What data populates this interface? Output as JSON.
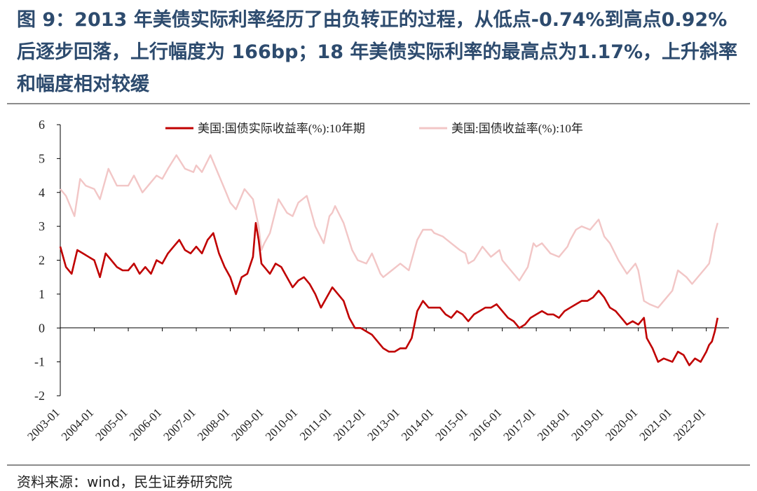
{
  "title": "图 9：2013 年美债实际利率经历了由负转正的过程，从低点-0.74%到高点0.92%后逐步回落，上行幅度为 166bp；18 年美债实际利率的最高点为1.17%，上升斜率和幅度相对较缓",
  "source": "资料来源：wind，民生证券研究院",
  "chart_data": {
    "type": "line",
    "ylim": [
      -2,
      6
    ],
    "yticks": [
      "6",
      "5",
      "4",
      "3",
      "2",
      "1",
      "0",
      "-1",
      "-2"
    ],
    "x_tick_labels": [
      "2003-01",
      "2004-01",
      "2005-01",
      "2006-01",
      "2007-01",
      "2008-01",
      "2009-01",
      "2010-01",
      "2011-01",
      "2012-01",
      "2013-01",
      "2014-01",
      "2015-01",
      "2016-01",
      "2017-01",
      "2018-01",
      "2019-01",
      "2020-01",
      "2021-01",
      "2022-01"
    ],
    "legend_position": "top",
    "series": [
      {
        "name": "美国:国债实际收益率(%):10年期",
        "color": "#c00000",
        "points": [
          [
            "2003-01",
            2.4
          ],
          [
            "2003-03",
            1.8
          ],
          [
            "2003-05",
            1.6
          ],
          [
            "2003-07",
            2.3
          ],
          [
            "2003-09",
            2.2
          ],
          [
            "2003-11",
            2.1
          ],
          [
            "2004-01",
            2.0
          ],
          [
            "2004-03",
            1.5
          ],
          [
            "2004-05",
            2.2
          ],
          [
            "2004-07",
            2.0
          ],
          [
            "2004-09",
            1.8
          ],
          [
            "2004-11",
            1.7
          ],
          [
            "2005-01",
            1.7
          ],
          [
            "2005-03",
            1.9
          ],
          [
            "2005-05",
            1.6
          ],
          [
            "2005-07",
            1.8
          ],
          [
            "2005-09",
            1.6
          ],
          [
            "2005-11",
            2.0
          ],
          [
            "2006-01",
            1.9
          ],
          [
            "2006-03",
            2.2
          ],
          [
            "2006-05",
            2.4
          ],
          [
            "2006-07",
            2.6
          ],
          [
            "2006-09",
            2.3
          ],
          [
            "2006-11",
            2.2
          ],
          [
            "2007-01",
            2.4
          ],
          [
            "2007-03",
            2.2
          ],
          [
            "2007-05",
            2.6
          ],
          [
            "2007-07",
            2.8
          ],
          [
            "2007-09",
            2.2
          ],
          [
            "2007-11",
            1.8
          ],
          [
            "2008-01",
            1.5
          ],
          [
            "2008-03",
            1.0
          ],
          [
            "2008-05",
            1.5
          ],
          [
            "2008-07",
            1.6
          ],
          [
            "2008-09",
            2.1
          ],
          [
            "2008-10",
            3.1
          ],
          [
            "2008-11",
            2.6
          ],
          [
            "2008-12",
            1.9
          ],
          [
            "2009-01",
            1.8
          ],
          [
            "2009-03",
            1.6
          ],
          [
            "2009-05",
            1.9
          ],
          [
            "2009-07",
            1.8
          ],
          [
            "2009-09",
            1.5
          ],
          [
            "2009-11",
            1.2
          ],
          [
            "2010-01",
            1.4
          ],
          [
            "2010-03",
            1.5
          ],
          [
            "2010-05",
            1.3
          ],
          [
            "2010-07",
            1.0
          ],
          [
            "2010-09",
            0.6
          ],
          [
            "2010-11",
            0.9
          ],
          [
            "2011-01",
            1.2
          ],
          [
            "2011-03",
            1.0
          ],
          [
            "2011-05",
            0.8
          ],
          [
            "2011-07",
            0.3
          ],
          [
            "2011-09",
            0.0
          ],
          [
            "2011-11",
            0.0
          ],
          [
            "2012-01",
            -0.1
          ],
          [
            "2012-03",
            -0.2
          ],
          [
            "2012-05",
            -0.4
          ],
          [
            "2012-07",
            -0.6
          ],
          [
            "2012-09",
            -0.7
          ],
          [
            "2012-11",
            -0.7
          ],
          [
            "2013-01",
            -0.6
          ],
          [
            "2013-03",
            -0.6
          ],
          [
            "2013-05",
            -0.3
          ],
          [
            "2013-07",
            0.5
          ],
          [
            "2013-09",
            0.8
          ],
          [
            "2013-11",
            0.6
          ],
          [
            "2014-01",
            0.6
          ],
          [
            "2014-03",
            0.6
          ],
          [
            "2014-05",
            0.4
          ],
          [
            "2014-07",
            0.3
          ],
          [
            "2014-09",
            0.5
          ],
          [
            "2014-11",
            0.4
          ],
          [
            "2015-01",
            0.2
          ],
          [
            "2015-03",
            0.4
          ],
          [
            "2015-05",
            0.5
          ],
          [
            "2015-07",
            0.6
          ],
          [
            "2015-09",
            0.6
          ],
          [
            "2015-11",
            0.7
          ],
          [
            "2016-01",
            0.5
          ],
          [
            "2016-03",
            0.3
          ],
          [
            "2016-05",
            0.2
          ],
          [
            "2016-07",
            0.0
          ],
          [
            "2016-09",
            0.1
          ],
          [
            "2016-11",
            0.3
          ],
          [
            "2017-01",
            0.4
          ],
          [
            "2017-03",
            0.5
          ],
          [
            "2017-05",
            0.4
          ],
          [
            "2017-07",
            0.4
          ],
          [
            "2017-09",
            0.3
          ],
          [
            "2017-11",
            0.5
          ],
          [
            "2018-01",
            0.6
          ],
          [
            "2018-03",
            0.7
          ],
          [
            "2018-05",
            0.8
          ],
          [
            "2018-07",
            0.8
          ],
          [
            "2018-09",
            0.9
          ],
          [
            "2018-11",
            1.1
          ],
          [
            "2019-01",
            0.9
          ],
          [
            "2019-03",
            0.6
          ],
          [
            "2019-05",
            0.5
          ],
          [
            "2019-07",
            0.3
          ],
          [
            "2019-09",
            0.1
          ],
          [
            "2019-11",
            0.2
          ],
          [
            "2020-01",
            0.1
          ],
          [
            "2020-03",
            0.3
          ],
          [
            "2020-04",
            -0.3
          ],
          [
            "2020-06",
            -0.6
          ],
          [
            "2020-08",
            -1.0
          ],
          [
            "2020-10",
            -0.9
          ],
          [
            "2021-01",
            -1.0
          ],
          [
            "2021-03",
            -0.7
          ],
          [
            "2021-05",
            -0.8
          ],
          [
            "2021-07",
            -1.1
          ],
          [
            "2021-09",
            -0.9
          ],
          [
            "2021-11",
            -1.0
          ],
          [
            "2022-01",
            -0.7
          ],
          [
            "2022-02",
            -0.5
          ],
          [
            "2022-03",
            -0.4
          ],
          [
            "2022-04",
            -0.1
          ],
          [
            "2022-05",
            0.3
          ]
        ]
      },
      {
        "name": "美国:国债收益率(%):10年",
        "color": "#f2c6c6",
        "points": [
          [
            "2003-01",
            4.1
          ],
          [
            "2003-03",
            3.9
          ],
          [
            "2003-06",
            3.3
          ],
          [
            "2003-08",
            4.4
          ],
          [
            "2003-10",
            4.2
          ],
          [
            "2004-01",
            4.1
          ],
          [
            "2004-03",
            3.8
          ],
          [
            "2004-06",
            4.7
          ],
          [
            "2004-09",
            4.2
          ],
          [
            "2004-12",
            4.2
          ],
          [
            "2005-01",
            4.2
          ],
          [
            "2005-03",
            4.5
          ],
          [
            "2005-06",
            4.0
          ],
          [
            "2005-09",
            4.3
          ],
          [
            "2005-11",
            4.5
          ],
          [
            "2006-01",
            4.4
          ],
          [
            "2006-03",
            4.7
          ],
          [
            "2006-06",
            5.1
          ],
          [
            "2006-09",
            4.7
          ],
          [
            "2006-12",
            4.6
          ],
          [
            "2007-01",
            4.8
          ],
          [
            "2007-03",
            4.6
          ],
          [
            "2007-06",
            5.1
          ],
          [
            "2007-09",
            4.5
          ],
          [
            "2007-11",
            4.1
          ],
          [
            "2008-01",
            3.7
          ],
          [
            "2008-03",
            3.5
          ],
          [
            "2008-06",
            4.1
          ],
          [
            "2008-09",
            3.8
          ],
          [
            "2008-11",
            3.0
          ],
          [
            "2008-12",
            2.3
          ],
          [
            "2009-01",
            2.5
          ],
          [
            "2009-03",
            2.8
          ],
          [
            "2009-06",
            3.8
          ],
          [
            "2009-09",
            3.4
          ],
          [
            "2009-11",
            3.3
          ],
          [
            "2010-01",
            3.7
          ],
          [
            "2010-04",
            3.9
          ],
          [
            "2010-07",
            3.0
          ],
          [
            "2010-10",
            2.5
          ],
          [
            "2010-12",
            3.3
          ],
          [
            "2011-01",
            3.4
          ],
          [
            "2011-02",
            3.6
          ],
          [
            "2011-05",
            3.1
          ],
          [
            "2011-08",
            2.3
          ],
          [
            "2011-10",
            2.0
          ],
          [
            "2012-01",
            1.9
          ],
          [
            "2012-03",
            2.2
          ],
          [
            "2012-06",
            1.6
          ],
          [
            "2012-07",
            1.5
          ],
          [
            "2012-10",
            1.7
          ],
          [
            "2013-01",
            1.9
          ],
          [
            "2013-04",
            1.7
          ],
          [
            "2013-07",
            2.6
          ],
          [
            "2013-09",
            2.9
          ],
          [
            "2013-12",
            2.9
          ],
          [
            "2014-01",
            2.8
          ],
          [
            "2014-04",
            2.7
          ],
          [
            "2014-07",
            2.5
          ],
          [
            "2014-10",
            2.3
          ],
          [
            "2014-12",
            2.2
          ],
          [
            "2015-01",
            1.9
          ],
          [
            "2015-03",
            2.0
          ],
          [
            "2015-06",
            2.4
          ],
          [
            "2015-09",
            2.1
          ],
          [
            "2015-12",
            2.3
          ],
          [
            "2016-01",
            2.0
          ],
          [
            "2016-03",
            1.8
          ],
          [
            "2016-07",
            1.4
          ],
          [
            "2016-10",
            1.8
          ],
          [
            "2016-12",
            2.5
          ],
          [
            "2017-01",
            2.4
          ],
          [
            "2017-03",
            2.5
          ],
          [
            "2017-06",
            2.2
          ],
          [
            "2017-09",
            2.1
          ],
          [
            "2017-12",
            2.4
          ],
          [
            "2018-01",
            2.6
          ],
          [
            "2018-03",
            2.9
          ],
          [
            "2018-05",
            3.0
          ],
          [
            "2018-08",
            2.9
          ],
          [
            "2018-11",
            3.2
          ],
          [
            "2019-01",
            2.7
          ],
          [
            "2019-03",
            2.5
          ],
          [
            "2019-06",
            2.0
          ],
          [
            "2019-09",
            1.6
          ],
          [
            "2019-12",
            1.9
          ],
          [
            "2020-01",
            1.7
          ],
          [
            "2020-03",
            0.8
          ],
          [
            "2020-05",
            0.7
          ],
          [
            "2020-08",
            0.6
          ],
          [
            "2020-11",
            0.9
          ],
          [
            "2021-01",
            1.1
          ],
          [
            "2021-03",
            1.7
          ],
          [
            "2021-06",
            1.5
          ],
          [
            "2021-08",
            1.3
          ],
          [
            "2021-11",
            1.6
          ],
          [
            "2022-01",
            1.8
          ],
          [
            "2022-02",
            1.9
          ],
          [
            "2022-03",
            2.3
          ],
          [
            "2022-04",
            2.8
          ],
          [
            "2022-05",
            3.1
          ]
        ]
      }
    ]
  }
}
